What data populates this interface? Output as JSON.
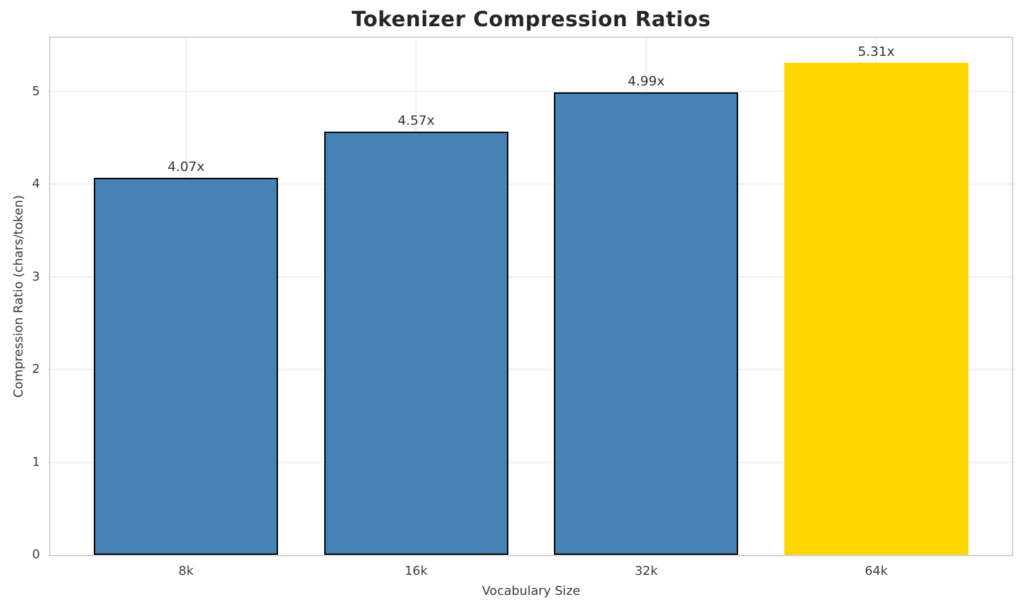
{
  "chart_data": {
    "type": "bar",
    "title": "Tokenizer Compression Ratios",
    "xlabel": "Vocabulary Size",
    "ylabel": "Compression Ratio (chars/token)",
    "categories": [
      "8k",
      "16k",
      "32k",
      "64k"
    ],
    "values": [
      4.07,
      4.57,
      4.99,
      5.31
    ],
    "bar_labels": [
      "4.07x",
      "4.57x",
      "4.99x",
      "5.31x"
    ],
    "bar_colors": [
      "#4682b4",
      "#4682b4",
      "#4682b4",
      "#ffd700"
    ],
    "bar_edge_colors": [
      "#000000",
      "#000000",
      "#000000",
      "none"
    ],
    "y_ticks": [
      0,
      1,
      2,
      3,
      4,
      5
    ],
    "y_tick_labels": [
      "0",
      "1",
      "2",
      "3",
      "4",
      "5"
    ],
    "ylim": [
      0,
      5.58
    ],
    "bar_width_fraction": 0.8,
    "grid": "both",
    "legend": "none",
    "highlight_color": "#ffd700",
    "base_color": "#4682b4"
  }
}
